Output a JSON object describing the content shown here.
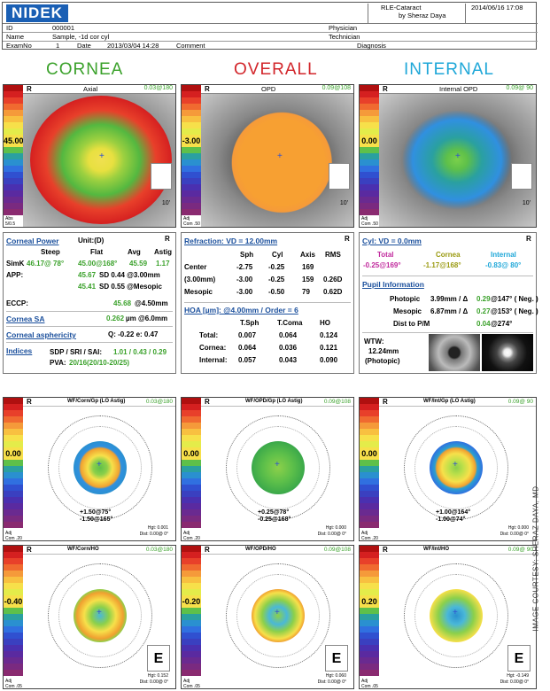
{
  "header": {
    "logo": "NIDEK",
    "procedure": "RLE-Cataract",
    "doctor": "by Sheraz Daya",
    "datetime": "2014/06/16 17:08",
    "id_label": "ID",
    "id_value": "000001",
    "name_label": "Name",
    "name_value": "Sample, -1d cor cyl",
    "exam_label": "ExamNo",
    "exam_value": "1",
    "date_label": "Date",
    "date_value": "2013/03/04 14:28",
    "comment_label": "Comment",
    "physician_label": "Physician",
    "technician_label": "Technician",
    "diagnosis_label": "Diagnosis"
  },
  "titles": {
    "cornea": "CORNEA",
    "overall": "OVERALL",
    "internal": "INTERNAL"
  },
  "maps_top": [
    {
      "eye": "R",
      "title": "Axial",
      "axis": "0.03@180",
      "center": "45.00",
      "bottom_left": "Abs\n5/0.5",
      "deg": "10'"
    },
    {
      "eye": "R",
      "title": "OPD",
      "axis": "0.09@108",
      "center": "-3.00",
      "bottom_left": "Adj\nCom .50",
      "deg": "10'"
    },
    {
      "eye": "R",
      "title": "Internal OPD",
      "axis": "0.09@ 90",
      "center": "0.00",
      "bottom_left": "Adj\nCom .50",
      "deg": "10'"
    }
  ],
  "cornea_panel": {
    "title": "Corneal Power",
    "unit": "Unit:(D)",
    "eye": "R",
    "cols": [
      "Steep",
      "Flat",
      "Avg",
      "Astig"
    ],
    "simk_label": "SimK",
    "simk_steep": "46.17@ 78°",
    "simk_flat": "45.00@168°",
    "simk_avg": "45.59",
    "simk_astig": "1.17",
    "app_label": "APP:",
    "app1_val": "45.67",
    "app1_txt": "SD 0.44 @3.00mm",
    "app2_val": "45.41",
    "app2_txt": "SD 0.55 @Mesopic",
    "eccp_label": "ECCP:",
    "eccp_val": "45.68",
    "eccp_txt": "@4.50mm",
    "sa_label": "Cornea SA",
    "sa_val": "0.262",
    "sa_txt": "µm @6.0mm",
    "asph_label": "Corneal asphericity",
    "asph_txt": "Q: -0.22   e: 0.47",
    "indices_label": "Indices",
    "indices_txt": "SDP / SRI / SAI:",
    "indices_val": "1.01 / 0.43 / 0.29",
    "pva_label": "PVA:",
    "pva_val": "20/16(20/10-20/25)"
  },
  "refraction_panel": {
    "title": "Refraction: VD = 12.00mm",
    "eye": "R",
    "cols": [
      "Sph",
      "Cyl",
      "Axis",
      "RMS"
    ],
    "rows": [
      {
        "label": "Center",
        "sph": "-2.75",
        "cyl": "-0.25",
        "axis": "169",
        "rms": ""
      },
      {
        "label": "(3.00mm)",
        "sph": "-3.00",
        "cyl": "-0.25",
        "axis": "159",
        "rms": "0.26D"
      },
      {
        "label": "Mesopic",
        "sph": "-3.00",
        "cyl": "-0.50",
        "axis": "79",
        "rms": "0.62D"
      }
    ],
    "hoa_title": "HOA [µm]: @4.00mm / Order = 6",
    "hoa_cols": [
      "T.Sph",
      "T.Coma",
      "HO"
    ],
    "hoa_rows": [
      {
        "label": "Total:",
        "tsph": "0.007",
        "tcoma": "0.064",
        "ho": "0.124"
      },
      {
        "label": "Cornea:",
        "tsph": "0.064",
        "tcoma": "0.036",
        "ho": "0.121"
      },
      {
        "label": "Internal:",
        "tsph": "0.057",
        "tcoma": "0.043",
        "ho": "0.090"
      }
    ]
  },
  "cyl_panel": {
    "title": "Cyl: VD = 0.0mm",
    "eye": "R",
    "total_label": "Total",
    "cornea_label": "Cornea",
    "internal_label": "Internal",
    "total_val": "-0.25@169°",
    "cornea_val": "-1.17@168°",
    "internal_val": "-0.83@ 80°",
    "pupil_title": "Pupil Information",
    "photopic_label": "Photopic",
    "photopic_val": "3.99mm / Δ",
    "photopic_delta": "0.29",
    "photopic_end": "@147° ( Neg. )",
    "mesopic_label": "Mesopic",
    "mesopic_val": "6.87mm / Δ",
    "mesopic_delta": "0.27",
    "mesopic_end": "@153° ( Neg. )",
    "dist_label": "Dist to P/M",
    "dist_delta": "0.04",
    "dist_end": "@274°",
    "wtw_label": "WTW:",
    "wtw_val": "12.24mm",
    "wtw_sub": "(Photopic)"
  },
  "maps_bottom": [
    {
      "eye": "R",
      "title": "WF/Corn/Gp (LO Astig)",
      "axis": "0.03@180",
      "center": "0.00",
      "s1": "+1.50@75°",
      "s2": "-1.50@165°",
      "hgt": "Hgt: 0.001",
      "dist": "Dist: 0.00@ 0°",
      "bl": "Adj\nCom .20"
    },
    {
      "eye": "R",
      "title": "WF/OPD/Gp (LO Astig)",
      "axis": "0.09@108",
      "center": "0.00",
      "s1": "+0.25@78°",
      "s2": "-0.25@168°",
      "hgt": "Hgt: 0.000",
      "dist": "Dist: 0.00@ 0°",
      "bl": "Adj\nCom .20"
    },
    {
      "eye": "R",
      "title": "WF/Int/Gp (LO Astig)",
      "axis": "0.09@ 90",
      "center": "0.00",
      "s1": "+1.00@164°",
      "s2": "-1.00@74°",
      "hgt": "Hgt: 0.000",
      "dist": "Dist: 0.00@ 0°",
      "bl": "Adj\nCom .20"
    },
    {
      "eye": "R",
      "title": "WF/Corn/HO",
      "axis": "0.03@180",
      "center": "-0.40",
      "s1": "",
      "s2": "",
      "hgt": "Hgt: 0.152",
      "dist": "Dist: 0.00@ 0°",
      "bl": "Adj\nCom .05"
    },
    {
      "eye": "R",
      "title": "WF/OPD/HO",
      "axis": "0.09@108",
      "center": "-0.20",
      "s1": "",
      "s2": "",
      "hgt": "Hgt: 0.060",
      "dist": "Dist: 0.00@ 0°",
      "bl": "Adj\nCom .05"
    },
    {
      "eye": "R",
      "title": "WF/Int/HO",
      "axis": "0.09@ 90",
      "center": "0.20",
      "s1": "",
      "s2": "",
      "hgt": "Hgt: -0.149",
      "dist": "Dist: 0.00@ 0°",
      "bl": "Adj\nCom .05"
    }
  ],
  "courtesy": "IMAGE COURTESY: SHERAZ DAYA, MD",
  "colors": {
    "blue": "#1a4f9c",
    "green": "#3aa12a",
    "red": "#d2252a",
    "cyan": "#1ea7d8"
  }
}
